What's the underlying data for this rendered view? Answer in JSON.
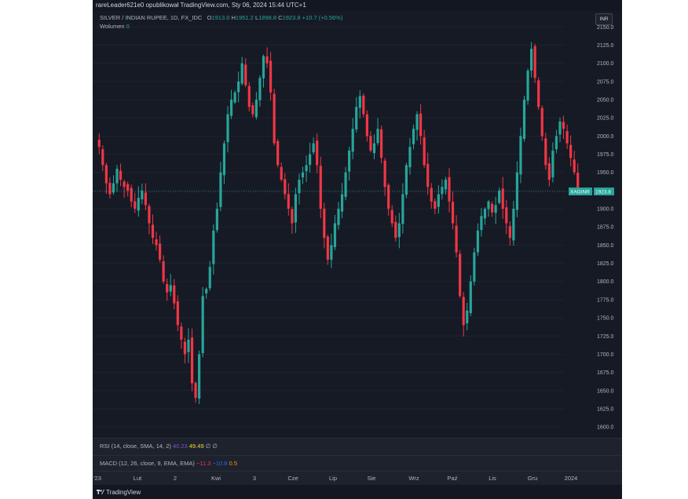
{
  "header_text": "rareLeader621e0 opublikował TradingView.com, Sty 06, 2024 15:44 UTC+1",
  "symbol_line": {
    "title": "SILVER / INDIAN RUPEE, 1D, FX_IDC",
    "o_label": "O",
    "o_val": "1913.0",
    "h_label": "H",
    "h_val": "1951.2",
    "l_label": "L",
    "l_val": "1898.8",
    "c_label": "C",
    "c_val": "1923.8",
    "change": "+10.7 (+0.56%)"
  },
  "volume_line": {
    "label": "Wolumen",
    "value": "0"
  },
  "currency_button": "INR",
  "price_tag": {
    "symbol": "XAGINR",
    "value": "1923.8"
  },
  "rsi_legend": {
    "label": "RSI (14, close, SMA, 14, 2)",
    "v1": "40.23",
    "v2": "49.49",
    "v3": "∅",
    "v4": "∅"
  },
  "macd_legend": {
    "label": "MACD (12, 26, close, 9, EMA, EMA)",
    "v1": "−11.3",
    "v2": "−10.8",
    "v3": "0.5"
  },
  "footer_logo": "TradingView",
  "colors": {
    "up": "#26a69a",
    "down": "#f23645",
    "bg": "#161a25",
    "grid": "#1f2330",
    "text": "#b2b5be"
  },
  "chart_data": {
    "type": "candlestick",
    "title": "SILVER / INDIAN RUPEE, 1D, FX_IDC",
    "xlabel": "",
    "ylabel": "",
    "ylim": [
      1585,
      2172
    ],
    "yticks": [
      1600,
      1625,
      1650,
      1675,
      1700,
      1725,
      1750,
      1775,
      1800,
      1825,
      1850,
      1875,
      1900,
      1925,
      1950,
      1975,
      2000,
      2025,
      2050,
      2075,
      2100,
      2125,
      2150
    ],
    "ytick_labels": [
      "1600.0",
      "1625.0",
      "1650.0",
      "1675.0",
      "1700.0",
      "1725.0",
      "1750.0",
      "1775.0",
      "1800.0",
      "1825.0",
      "1850.0",
      "1875.0",
      "1900.0",
      "1925.0",
      "1950.0",
      "1975.0",
      "2000.0",
      "2025.0",
      "2050.0",
      "2075.0",
      "2100.0",
      "2125.0",
      "2150.0"
    ],
    "x_ticks": [
      "2023",
      "Lut",
      "2",
      "Kwi",
      "3",
      "Cze",
      "Lip",
      "Sie",
      "Wrz",
      "Paź",
      "Lis",
      "Gru",
      "2024"
    ],
    "x_tick_labels": [
      "'23",
      "Lut",
      "2",
      "Kwi",
      "3",
      "Cze",
      "Lip",
      "Sie",
      "Wrz",
      "Paź",
      "Lis",
      "Gru",
      "2024"
    ],
    "last_close": 1923.8,
    "close_series": [
      1985,
      1960,
      1935,
      1920,
      1935,
      1955,
      1940,
      1930,
      1925,
      1910,
      1900,
      1915,
      1925,
      1905,
      1880,
      1860,
      1850,
      1830,
      1800,
      1785,
      1795,
      1770,
      1740,
      1720,
      1700,
      1720,
      1660,
      1640,
      1700,
      1780,
      1790,
      1820,
      1870,
      1900,
      1950,
      1990,
      2030,
      2050,
      2060,
      2075,
      2100,
      2070,
      2040,
      2030,
      2050,
      2080,
      2110,
      2100,
      2060,
      1990,
      1960,
      1940,
      1920,
      1900,
      1880,
      1920,
      1940,
      1950,
      1960,
      1975,
      1990,
      1960,
      1900,
      1860,
      1830,
      1850,
      1880,
      1900,
      1920,
      1950,
      1980,
      2010,
      2040,
      2055,
      2030,
      2000,
      1980,
      1990,
      2010,
      1970,
      1930,
      1900,
      1880,
      1860,
      1880,
      1920,
      1960,
      1985,
      2010,
      2030,
      2000,
      1960,
      1930,
      1910,
      1900,
      1920,
      1930,
      1940,
      1910,
      1880,
      1840,
      1780,
      1740,
      1760,
      1800,
      1840,
      1870,
      1890,
      1900,
      1910,
      1895,
      1905,
      1925,
      1900,
      1880,
      1860,
      1900,
      1950,
      2000,
      2050,
      2090,
      2120,
      2080,
      2040,
      2000,
      1960,
      1940,
      1980,
      2000,
      2020,
      2010,
      1990,
      1970,
      1950,
      1923.8
    ]
  }
}
